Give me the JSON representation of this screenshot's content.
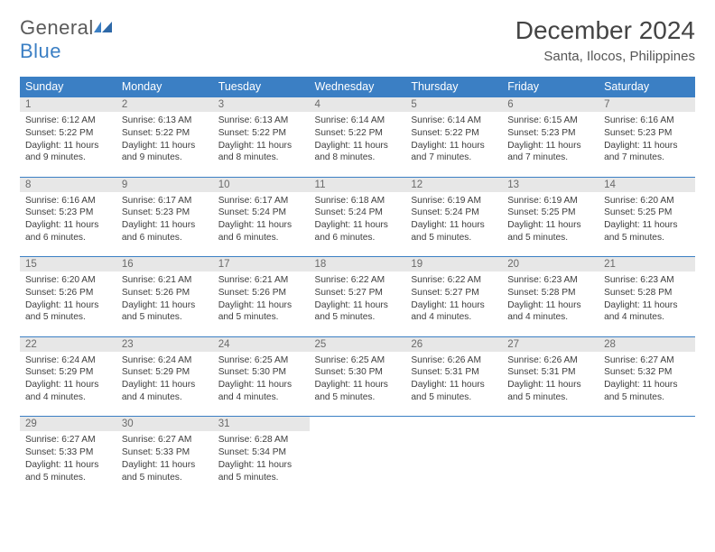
{
  "brand": {
    "word1": "General",
    "word2": "Blue"
  },
  "title": "December 2024",
  "subtitle": "Santa, Ilocos, Philippines",
  "colors": {
    "primary": "#3b7fc4",
    "header_bg": "#e7e7e7",
    "text": "#3d3d3d",
    "title_text": "#444444",
    "background": "#ffffff"
  },
  "day_names": [
    "Sunday",
    "Monday",
    "Tuesday",
    "Wednesday",
    "Thursday",
    "Friday",
    "Saturday"
  ],
  "weeks": [
    [
      {
        "n": "1",
        "sr": "Sunrise: 6:12 AM",
        "ss": "Sunset: 5:22 PM",
        "dl": "Daylight: 11 hours and 9 minutes."
      },
      {
        "n": "2",
        "sr": "Sunrise: 6:13 AM",
        "ss": "Sunset: 5:22 PM",
        "dl": "Daylight: 11 hours and 9 minutes."
      },
      {
        "n": "3",
        "sr": "Sunrise: 6:13 AM",
        "ss": "Sunset: 5:22 PM",
        "dl": "Daylight: 11 hours and 8 minutes."
      },
      {
        "n": "4",
        "sr": "Sunrise: 6:14 AM",
        "ss": "Sunset: 5:22 PM",
        "dl": "Daylight: 11 hours and 8 minutes."
      },
      {
        "n": "5",
        "sr": "Sunrise: 6:14 AM",
        "ss": "Sunset: 5:22 PM",
        "dl": "Daylight: 11 hours and 7 minutes."
      },
      {
        "n": "6",
        "sr": "Sunrise: 6:15 AM",
        "ss": "Sunset: 5:23 PM",
        "dl": "Daylight: 11 hours and 7 minutes."
      },
      {
        "n": "7",
        "sr": "Sunrise: 6:16 AM",
        "ss": "Sunset: 5:23 PM",
        "dl": "Daylight: 11 hours and 7 minutes."
      }
    ],
    [
      {
        "n": "8",
        "sr": "Sunrise: 6:16 AM",
        "ss": "Sunset: 5:23 PM",
        "dl": "Daylight: 11 hours and 6 minutes."
      },
      {
        "n": "9",
        "sr": "Sunrise: 6:17 AM",
        "ss": "Sunset: 5:23 PM",
        "dl": "Daylight: 11 hours and 6 minutes."
      },
      {
        "n": "10",
        "sr": "Sunrise: 6:17 AM",
        "ss": "Sunset: 5:24 PM",
        "dl": "Daylight: 11 hours and 6 minutes."
      },
      {
        "n": "11",
        "sr": "Sunrise: 6:18 AM",
        "ss": "Sunset: 5:24 PM",
        "dl": "Daylight: 11 hours and 6 minutes."
      },
      {
        "n": "12",
        "sr": "Sunrise: 6:19 AM",
        "ss": "Sunset: 5:24 PM",
        "dl": "Daylight: 11 hours and 5 minutes."
      },
      {
        "n": "13",
        "sr": "Sunrise: 6:19 AM",
        "ss": "Sunset: 5:25 PM",
        "dl": "Daylight: 11 hours and 5 minutes."
      },
      {
        "n": "14",
        "sr": "Sunrise: 6:20 AM",
        "ss": "Sunset: 5:25 PM",
        "dl": "Daylight: 11 hours and 5 minutes."
      }
    ],
    [
      {
        "n": "15",
        "sr": "Sunrise: 6:20 AM",
        "ss": "Sunset: 5:26 PM",
        "dl": "Daylight: 11 hours and 5 minutes."
      },
      {
        "n": "16",
        "sr": "Sunrise: 6:21 AM",
        "ss": "Sunset: 5:26 PM",
        "dl": "Daylight: 11 hours and 5 minutes."
      },
      {
        "n": "17",
        "sr": "Sunrise: 6:21 AM",
        "ss": "Sunset: 5:26 PM",
        "dl": "Daylight: 11 hours and 5 minutes."
      },
      {
        "n": "18",
        "sr": "Sunrise: 6:22 AM",
        "ss": "Sunset: 5:27 PM",
        "dl": "Daylight: 11 hours and 5 minutes."
      },
      {
        "n": "19",
        "sr": "Sunrise: 6:22 AM",
        "ss": "Sunset: 5:27 PM",
        "dl": "Daylight: 11 hours and 4 minutes."
      },
      {
        "n": "20",
        "sr": "Sunrise: 6:23 AM",
        "ss": "Sunset: 5:28 PM",
        "dl": "Daylight: 11 hours and 4 minutes."
      },
      {
        "n": "21",
        "sr": "Sunrise: 6:23 AM",
        "ss": "Sunset: 5:28 PM",
        "dl": "Daylight: 11 hours and 4 minutes."
      }
    ],
    [
      {
        "n": "22",
        "sr": "Sunrise: 6:24 AM",
        "ss": "Sunset: 5:29 PM",
        "dl": "Daylight: 11 hours and 4 minutes."
      },
      {
        "n": "23",
        "sr": "Sunrise: 6:24 AM",
        "ss": "Sunset: 5:29 PM",
        "dl": "Daylight: 11 hours and 4 minutes."
      },
      {
        "n": "24",
        "sr": "Sunrise: 6:25 AM",
        "ss": "Sunset: 5:30 PM",
        "dl": "Daylight: 11 hours and 4 minutes."
      },
      {
        "n": "25",
        "sr": "Sunrise: 6:25 AM",
        "ss": "Sunset: 5:30 PM",
        "dl": "Daylight: 11 hours and 5 minutes."
      },
      {
        "n": "26",
        "sr": "Sunrise: 6:26 AM",
        "ss": "Sunset: 5:31 PM",
        "dl": "Daylight: 11 hours and 5 minutes."
      },
      {
        "n": "27",
        "sr": "Sunrise: 6:26 AM",
        "ss": "Sunset: 5:31 PM",
        "dl": "Daylight: 11 hours and 5 minutes."
      },
      {
        "n": "28",
        "sr": "Sunrise: 6:27 AM",
        "ss": "Sunset: 5:32 PM",
        "dl": "Daylight: 11 hours and 5 minutes."
      }
    ],
    [
      {
        "n": "29",
        "sr": "Sunrise: 6:27 AM",
        "ss": "Sunset: 5:33 PM",
        "dl": "Daylight: 11 hours and 5 minutes."
      },
      {
        "n": "30",
        "sr": "Sunrise: 6:27 AM",
        "ss": "Sunset: 5:33 PM",
        "dl": "Daylight: 11 hours and 5 minutes."
      },
      {
        "n": "31",
        "sr": "Sunrise: 6:28 AM",
        "ss": "Sunset: 5:34 PM",
        "dl": "Daylight: 11 hours and 5 minutes."
      },
      null,
      null,
      null,
      null
    ]
  ]
}
